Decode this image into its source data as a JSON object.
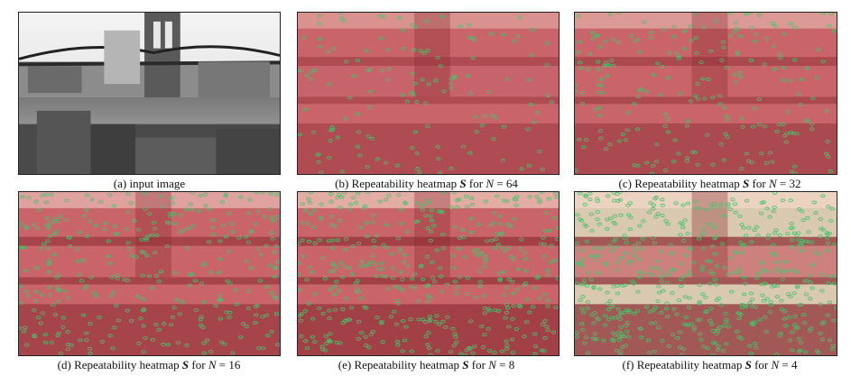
{
  "figure": {
    "panels": [
      {
        "id": "a",
        "label": "(a)",
        "text": "input image",
        "style": "gray"
      },
      {
        "id": "b",
        "label": "(b)",
        "prefix": "Repeatability heatmap",
        "symbol": "S",
        "for": "for",
        "var": "N",
        "value": "64",
        "style": "heat",
        "intensity": 0.15
      },
      {
        "id": "c",
        "label": "(c)",
        "prefix": "Repeatability heatmap",
        "symbol": "S",
        "for": "for",
        "var": "N",
        "value": "32",
        "style": "heat",
        "intensity": 0.3
      },
      {
        "id": "d",
        "label": "(d)",
        "prefix": "Repeatability heatmap",
        "symbol": "S",
        "for": "for",
        "var": "N",
        "value": "16",
        "style": "heat",
        "intensity": 0.5
      },
      {
        "id": "e",
        "label": "(e)",
        "prefix": "Repeatability heatmap",
        "symbol": "S",
        "for": "for",
        "var": "N",
        "value": "8",
        "style": "heat",
        "intensity": 0.7
      },
      {
        "id": "f",
        "label": "(f)",
        "prefix": "Repeatability heatmap",
        "symbol": "S",
        "for": "for",
        "var": "N",
        "value": "4",
        "style": "heat",
        "intensity": 0.9
      }
    ],
    "colors": {
      "heat_dark": "#8b2a32",
      "heat_mid": "#c8646a",
      "heat_light": "#f2d6c8",
      "keypoint": "#49c26a",
      "gray_sky": "#eeeeee",
      "gray_dark": "#3a3a3a"
    }
  }
}
